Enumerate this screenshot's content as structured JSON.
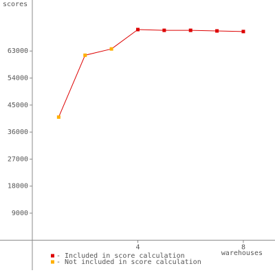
{
  "chart_data": {
    "type": "line",
    "y_label": "scores",
    "x_label": "warehouses",
    "line_color": "#dd0000",
    "series": [
      {
        "name": "- Included in score calculation",
        "color": "#dd0000",
        "x": [
          4,
          5,
          6,
          7,
          8
        ],
        "values": [
          70150,
          69900,
          69900,
          69700,
          69500
        ]
      },
      {
        "name": "- Not included in score calculation",
        "color": "#ffb000",
        "x": [
          1,
          2,
          3
        ],
        "values": [
          41000,
          61600,
          63700
        ]
      }
    ],
    "xlim": [
      0,
      9.2
    ],
    "xticks": [
      4,
      8
    ],
    "ylim": [
      -10000,
      80000
    ],
    "yticks": [
      9000,
      18000,
      27000,
      36000,
      45000,
      54000,
      63000
    ]
  }
}
